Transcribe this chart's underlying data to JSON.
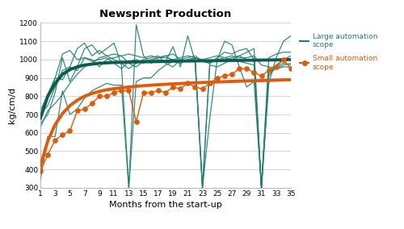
{
  "title": "Newsprint Production",
  "xlabel": "Months from the start-up",
  "ylabel": "kg/cm/d",
  "xlim": [
    1,
    35
  ],
  "ylim": [
    300,
    1200
  ],
  "yticks": [
    300,
    400,
    500,
    600,
    700,
    800,
    900,
    1000,
    1100,
    1200
  ],
  "xticks": [
    1,
    3,
    5,
    7,
    9,
    11,
    13,
    15,
    17,
    19,
    21,
    23,
    25,
    27,
    29,
    31,
    33,
    35
  ],
  "teal_color": "#1d8070",
  "orange_color": "#e05a0a",
  "large_trend_color": "#0d5c4e",
  "large_lines": [
    [
      1,
      650,
      2,
      700,
      3,
      820,
      4,
      1010,
      5,
      880,
      6,
      960,
      7,
      1060,
      8,
      1080,
      9,
      1030,
      10,
      1060,
      11,
      1090,
      12,
      970,
      13,
      300,
      14,
      1190,
      15,
      1020,
      16,
      980,
      17,
      1000,
      18,
      990,
      19,
      1070,
      20,
      960,
      21,
      1130,
      22,
      990,
      23,
      300,
      24,
      680,
      25,
      1000,
      26,
      1100,
      27,
      1080,
      28,
      960,
      29,
      850,
      30,
      880,
      31,
      300,
      32,
      870,
      33,
      1010,
      34,
      1100,
      35,
      1130
    ],
    [
      1,
      700,
      2,
      750,
      3,
      850,
      4,
      940,
      5,
      960,
      6,
      1060,
      7,
      1090,
      8,
      1020,
      9,
      1050,
      10,
      1020,
      11,
      1000,
      12,
      980,
      13,
      950,
      14,
      980,
      15,
      1000,
      16,
      1010,
      17,
      1020,
      18,
      980,
      19,
      960,
      20,
      1000,
      21,
      990,
      22,
      1010,
      23,
      300,
      24,
      970,
      25,
      960,
      26,
      980,
      27,
      1000,
      28,
      1020,
      29,
      1000,
      30,
      990,
      31,
      300,
      32,
      940,
      33,
      970,
      34,
      1000,
      35,
      1020
    ],
    [
      1,
      680,
      2,
      790,
      3,
      900,
      4,
      890,
      5,
      960,
      6,
      940,
      7,
      1010,
      8,
      1000,
      9,
      960,
      10,
      1000,
      11,
      1010,
      12,
      1020,
      13,
      980,
      14,
      960,
      15,
      990,
      16,
      990,
      17,
      1010,
      18,
      1020,
      19,
      1030,
      20,
      1000,
      21,
      1010,
      22,
      1020,
      23,
      990,
      24,
      980,
      25,
      1010,
      26,
      1040,
      27,
      1030,
      28,
      1050,
      29,
      1060,
      30,
      1000,
      31,
      300,
      32,
      910,
      33,
      960,
      34,
      980,
      35,
      970
    ],
    [
      1,
      720,
      2,
      810,
      3,
      900,
      4,
      1030,
      5,
      1050,
      6,
      1000,
      7,
      1010,
      8,
      990,
      9,
      1000,
      10,
      1010,
      11,
      980,
      12,
      950,
      13,
      990,
      14,
      1000,
      15,
      980,
      16,
      1000,
      17,
      1010,
      18,
      1020,
      19,
      990,
      20,
      980,
      21,
      1000,
      22,
      1010,
      23,
      990,
      24,
      980,
      25,
      1000,
      26,
      1010,
      27,
      1000,
      28,
      990,
      29,
      980,
      30,
      970,
      31,
      300,
      32,
      930,
      33,
      950,
      34,
      960,
      35,
      960
    ],
    [
      1,
      630,
      2,
      720,
      3,
      760,
      4,
      810,
      5,
      870,
      6,
      920,
      7,
      960,
      8,
      980,
      9,
      1010,
      10,
      1020,
      11,
      1030,
      12,
      1020,
      13,
      1030,
      14,
      1020,
      15,
      1010,
      16,
      1020,
      17,
      1010,
      18,
      1010,
      19,
      1000,
      20,
      1010,
      21,
      1020,
      22,
      1010,
      23,
      1000,
      24,
      1010,
      25,
      1020,
      26,
      1010,
      27,
      1020,
      28,
      1010,
      29,
      1010,
      30,
      1020,
      31,
      970,
      32,
      960,
      33,
      950,
      34,
      970,
      35,
      980
    ],
    [
      1,
      340,
      2,
      580,
      3,
      580,
      4,
      830,
      5,
      700,
      6,
      730,
      7,
      790,
      8,
      830,
      9,
      850,
      10,
      870,
      11,
      860,
      12,
      860,
      13,
      300,
      14,
      880,
      15,
      900,
      16,
      900,
      17,
      940,
      18,
      970,
      19,
      990,
      20,
      990,
      21,
      990,
      22,
      990,
      23,
      300,
      24,
      990,
      25,
      990,
      26,
      1000,
      27,
      1010,
      28,
      1020,
      29,
      1040,
      30,
      1060,
      31,
      300,
      32,
      1010,
      33,
      1030,
      34,
      1040,
      35,
      1040
    ]
  ],
  "small_dots_x": [
    1,
    2,
    3,
    4,
    5,
    6,
    7,
    8,
    9,
    10,
    11,
    12,
    13,
    14,
    15,
    16,
    17,
    18,
    19,
    20,
    21,
    22,
    23,
    24,
    25,
    26,
    27,
    28,
    29,
    30,
    31,
    32,
    33,
    34,
    35
  ],
  "small_dots_y": [
    390,
    480,
    560,
    590,
    610,
    720,
    730,
    760,
    800,
    800,
    820,
    830,
    830,
    660,
    820,
    820,
    830,
    820,
    850,
    840,
    870,
    850,
    840,
    870,
    900,
    910,
    920,
    950,
    950,
    930,
    910,
    940,
    960,
    1000,
    950
  ],
  "large_trend_x": [
    1,
    2,
    3,
    4,
    5,
    6,
    7,
    8,
    9,
    10,
    11,
    12,
    13,
    14,
    15,
    17,
    19,
    21,
    23,
    25,
    27,
    29,
    31,
    33,
    35
  ],
  "large_trend_y": [
    680,
    800,
    870,
    920,
    945,
    960,
    970,
    975,
    980,
    982,
    984,
    985,
    986,
    987,
    988,
    989,
    991,
    992,
    993,
    994,
    995,
    996,
    997,
    998,
    1000
  ],
  "small_trend_x": [
    1,
    2,
    3,
    4,
    5,
    6,
    7,
    8,
    9,
    10,
    12,
    14,
    16,
    18,
    20,
    22,
    24,
    26,
    28,
    30,
    32,
    34,
    35
  ],
  "small_trend_y": [
    420,
    555,
    645,
    705,
    748,
    778,
    800,
    815,
    826,
    835,
    846,
    854,
    860,
    865,
    869,
    873,
    876,
    879,
    882,
    884,
    886,
    889,
    890
  ]
}
